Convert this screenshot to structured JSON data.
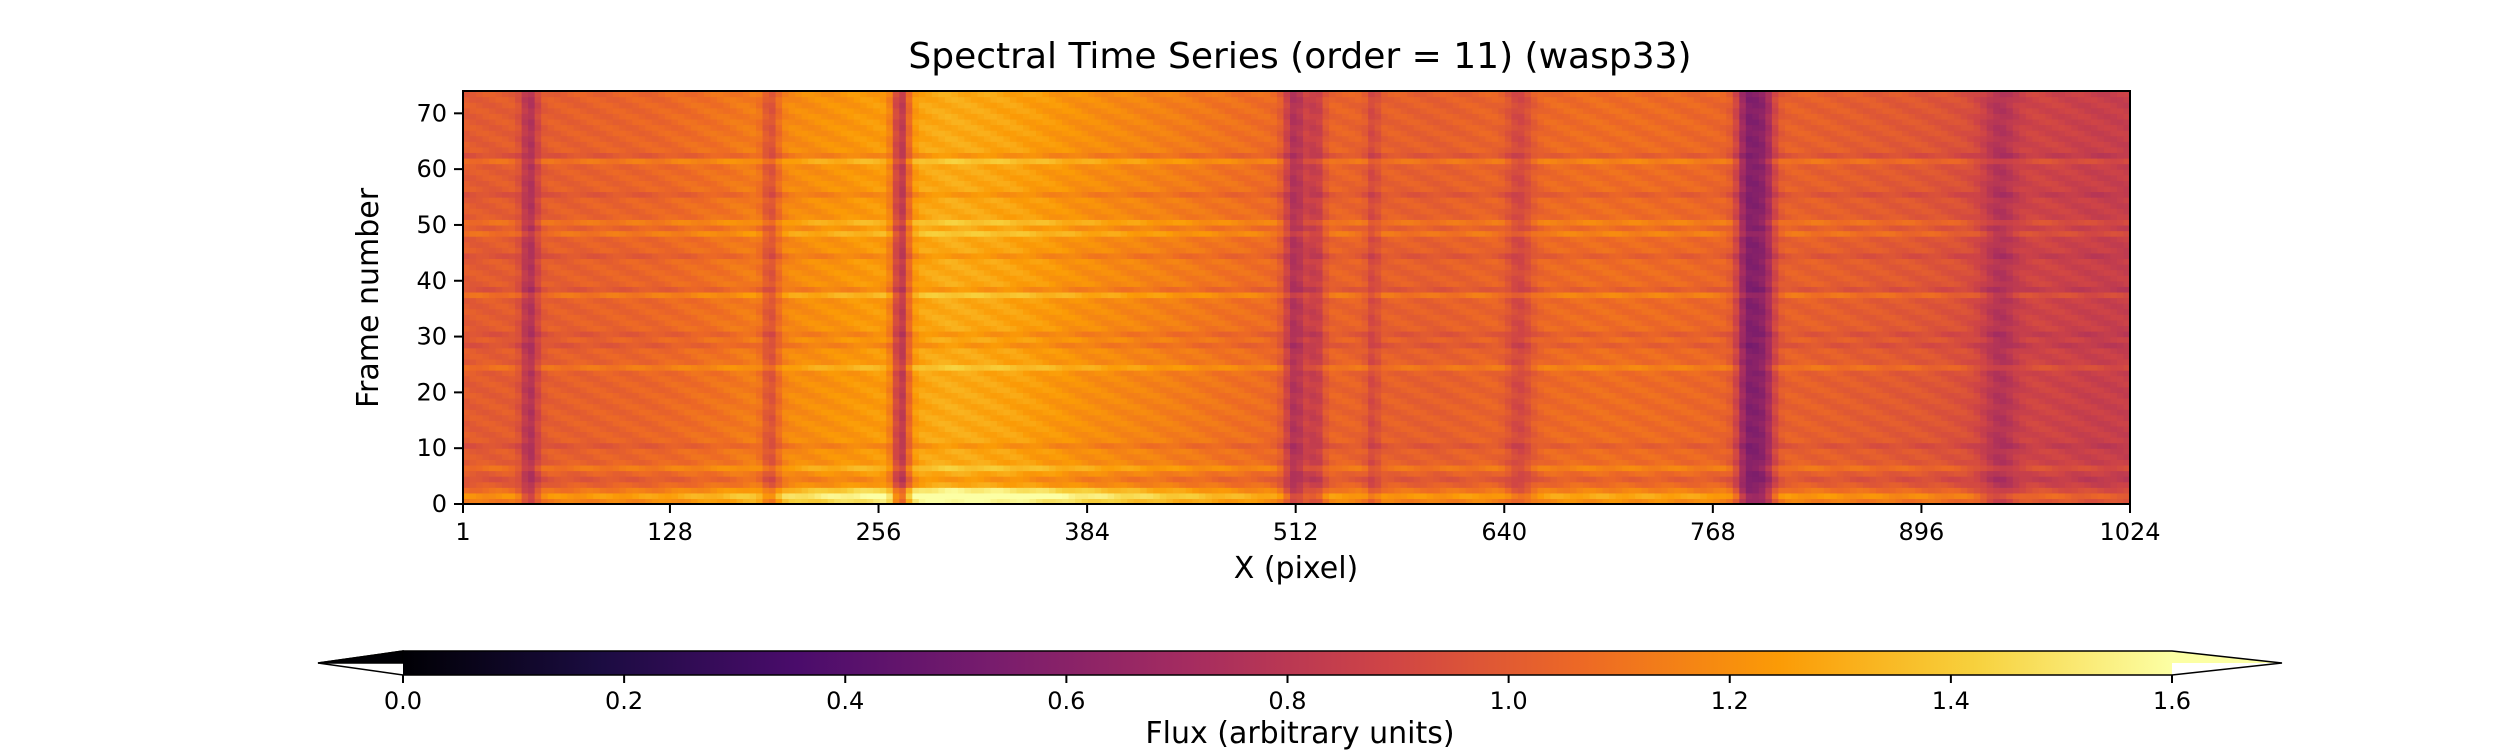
{
  "chart_data": {
    "type": "heatmap",
    "title": "Spectral Time Series (order = 11) (wasp33)",
    "xlabel": "X (pixel)",
    "ylabel": "Frame number",
    "xlim": [
      1,
      1024
    ],
    "ylim": [
      0,
      74
    ],
    "x_ticks": [
      1,
      128,
      256,
      384,
      512,
      640,
      768,
      896,
      1024
    ],
    "y_ticks": [
      0,
      10,
      20,
      30,
      40,
      50,
      60,
      70
    ],
    "n_frames": 74,
    "grid": false,
    "colorbar": {
      "label": "Flux (arbitrary units)",
      "colormap": "inferno",
      "range": [
        0.0,
        1.6
      ],
      "extend": "both",
      "ticks": [
        0.0,
        0.2,
        0.4,
        0.6,
        0.8,
        1.0,
        1.2,
        1.4,
        1.6
      ],
      "tick_labels": [
        "0.0",
        "0.2",
        "0.4",
        "0.6",
        "0.8",
        "1.0",
        "1.2",
        "1.4",
        "1.6"
      ],
      "placement": "bottom"
    },
    "continuum_profile": [
      {
        "x": 1,
        "flux": 1.0
      },
      {
        "x": 60,
        "flux": 1.02
      },
      {
        "x": 120,
        "flux": 1.05
      },
      {
        "x": 160,
        "flux": 1.1
      },
      {
        "x": 200,
        "flux": 1.18
      },
      {
        "x": 260,
        "flux": 1.25
      },
      {
        "x": 300,
        "flux": 1.3
      },
      {
        "x": 340,
        "flux": 1.27
      },
      {
        "x": 384,
        "flux": 1.2
      },
      {
        "x": 430,
        "flux": 1.15
      },
      {
        "x": 470,
        "flux": 1.1
      },
      {
        "x": 512,
        "flux": 1.06
      },
      {
        "x": 560,
        "flux": 1.03
      },
      {
        "x": 600,
        "flux": 1.02
      },
      {
        "x": 640,
        "flux": 1.05
      },
      {
        "x": 700,
        "flux": 1.08
      },
      {
        "x": 740,
        "flux": 1.07
      },
      {
        "x": 790,
        "flux": 1.04
      },
      {
        "x": 840,
        "flux": 1.02
      },
      {
        "x": 900,
        "flux": 0.98
      },
      {
        "x": 960,
        "flux": 0.9
      },
      {
        "x": 1000,
        "flux": 0.86
      },
      {
        "x": 1024,
        "flux": 0.85
      }
    ],
    "absorption_lines": [
      {
        "x": 42,
        "depth": 0.25,
        "width": 4
      },
      {
        "x": 190,
        "depth": 0.2,
        "width": 4
      },
      {
        "x": 270,
        "depth": 0.45,
        "width": 4
      },
      {
        "x": 512,
        "depth": 0.3,
        "width": 5
      },
      {
        "x": 525,
        "depth": 0.2,
        "width": 4
      },
      {
        "x": 560,
        "depth": 0.12,
        "width": 3
      },
      {
        "x": 650,
        "depth": 0.15,
        "width": 6
      },
      {
        "x": 790,
        "depth": 0.4,
        "width": 5
      },
      {
        "x": 800,
        "depth": 0.35,
        "width": 5
      },
      {
        "x": 945,
        "depth": 0.15,
        "width": 8
      }
    ],
    "bright_frames": [
      1,
      2,
      6,
      24,
      37,
      48,
      50,
      61
    ],
    "dim_frames": [
      4,
      10,
      28,
      30,
      38,
      44,
      55,
      62
    ]
  }
}
